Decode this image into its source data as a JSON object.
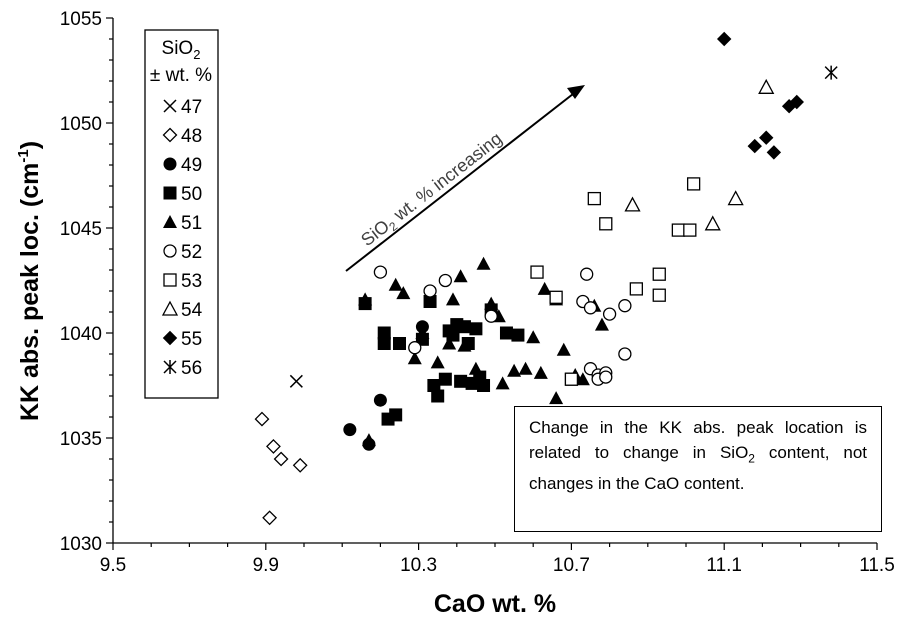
{
  "chart_data": {
    "type": "scatter",
    "xlabel": "CaO wt. %",
    "ylabel_main": "KK abs. peak loc. (cm",
    "ylabel_sup": "-1",
    "ylabel_end": ")",
    "xlim": [
      9.5,
      11.5
    ],
    "ylim": [
      1030,
      1055
    ],
    "xticks": [
      "9.5",
      "9.9",
      "10.3",
      "10.7",
      "11.1",
      "11.5"
    ],
    "yticks": [
      "1030",
      "1035",
      "1040",
      "1045",
      "1050",
      "1055"
    ],
    "legend": {
      "title_line1": "SiO",
      "title_sub": "2",
      "title_line2": "± wt. %",
      "placement": "top-left"
    },
    "arrow_label": {
      "prefix": "SiO",
      "sub": "2",
      "suffix": " wt. % increasing"
    },
    "series": [
      {
        "name": "47",
        "marker": "x",
        "points": [
          [
            9.98,
            1037.7
          ]
        ]
      },
      {
        "name": "48",
        "marker": "diamond-open",
        "points": [
          [
            9.89,
            1035.9
          ],
          [
            9.91,
            1031.2
          ],
          [
            9.92,
            1034.6
          ],
          [
            9.94,
            1034.0
          ],
          [
            9.99,
            1033.7
          ]
        ]
      },
      {
        "name": "49",
        "marker": "circle-filled",
        "points": [
          [
            10.12,
            1035.4
          ],
          [
            10.17,
            1034.7
          ],
          [
            10.2,
            1036.8
          ],
          [
            10.31,
            1040.3
          ]
        ]
      },
      {
        "name": "50",
        "marker": "square-filled",
        "points": [
          [
            10.16,
            1041.4
          ],
          [
            10.21,
            1040.0
          ],
          [
            10.21,
            1039.5
          ],
          [
            10.22,
            1035.9
          ],
          [
            10.24,
            1036.1
          ],
          [
            10.25,
            1039.5
          ],
          [
            10.31,
            1039.7
          ],
          [
            10.33,
            1041.5
          ],
          [
            10.34,
            1037.5
          ],
          [
            10.35,
            1037.0
          ],
          [
            10.37,
            1037.8
          ],
          [
            10.38,
            1040.1
          ],
          [
            10.39,
            1039.9
          ],
          [
            10.4,
            1040.4
          ],
          [
            10.41,
            1037.7
          ],
          [
            10.42,
            1040.3
          ],
          [
            10.43,
            1039.5
          ],
          [
            10.44,
            1037.6
          ],
          [
            10.45,
            1040.2
          ],
          [
            10.46,
            1037.9
          ],
          [
            10.47,
            1037.5
          ],
          [
            10.49,
            1041.1
          ],
          [
            10.53,
            1040.0
          ],
          [
            10.56,
            1039.9
          ],
          [
            10.7,
            1037.8
          ]
        ]
      },
      {
        "name": "51",
        "marker": "triangle-filled",
        "points": [
          [
            10.16,
            1041.6
          ],
          [
            10.17,
            1034.9
          ],
          [
            10.24,
            1042.3
          ],
          [
            10.26,
            1041.9
          ],
          [
            10.29,
            1038.8
          ],
          [
            10.31,
            1040.0
          ],
          [
            10.35,
            1038.6
          ],
          [
            10.38,
            1039.5
          ],
          [
            10.39,
            1041.6
          ],
          [
            10.41,
            1042.7
          ],
          [
            10.42,
            1039.4
          ],
          [
            10.45,
            1038.3
          ],
          [
            10.47,
            1043.3
          ],
          [
            10.49,
            1041.4
          ],
          [
            10.51,
            1040.8
          ],
          [
            10.52,
            1037.6
          ],
          [
            10.55,
            1038.2
          ],
          [
            10.58,
            1038.3
          ],
          [
            10.6,
            1039.8
          ],
          [
            10.62,
            1038.1
          ],
          [
            10.63,
            1042.1
          ],
          [
            10.66,
            1041.6
          ],
          [
            10.66,
            1036.9
          ],
          [
            10.68,
            1039.2
          ],
          [
            10.71,
            1038.0
          ],
          [
            10.73,
            1037.8
          ],
          [
            10.78,
            1040.4
          ],
          [
            10.76,
            1041.3
          ]
        ]
      },
      {
        "name": "52",
        "marker": "circle-open",
        "points": [
          [
            10.2,
            1042.9
          ],
          [
            10.29,
            1039.3
          ],
          [
            10.33,
            1042.0
          ],
          [
            10.37,
            1042.5
          ],
          [
            10.49,
            1040.8
          ],
          [
            10.73,
            1041.5
          ],
          [
            10.74,
            1042.8
          ],
          [
            10.75,
            1041.2
          ],
          [
            10.75,
            1038.3
          ],
          [
            10.77,
            1038.0
          ],
          [
            10.77,
            1037.8
          ],
          [
            10.79,
            1038.1
          ],
          [
            10.79,
            1037.9
          ],
          [
            10.8,
            1040.9
          ],
          [
            10.84,
            1041.3
          ],
          [
            10.84,
            1039.0
          ]
        ]
      },
      {
        "name": "53",
        "marker": "square-open",
        "points": [
          [
            10.61,
            1042.9
          ],
          [
            10.66,
            1041.7
          ],
          [
            10.7,
            1037.8
          ],
          [
            10.76,
            1046.4
          ],
          [
            10.79,
            1045.2
          ],
          [
            10.87,
            1042.1
          ],
          [
            10.93,
            1042.8
          ],
          [
            10.93,
            1041.8
          ],
          [
            10.98,
            1044.9
          ],
          [
            11.01,
            1044.9
          ],
          [
            11.02,
            1047.1
          ]
        ]
      },
      {
        "name": "54",
        "marker": "triangle-open",
        "points": [
          [
            10.86,
            1046.1
          ],
          [
            11.07,
            1045.2
          ],
          [
            11.13,
            1046.4
          ],
          [
            11.21,
            1051.7
          ]
        ]
      },
      {
        "name": "55",
        "marker": "diamond-filled",
        "points": [
          [
            11.1,
            1054.0
          ],
          [
            11.18,
            1048.9
          ],
          [
            11.21,
            1049.3
          ],
          [
            11.23,
            1048.6
          ],
          [
            11.27,
            1050.8
          ],
          [
            11.29,
            1051.0
          ]
        ]
      },
      {
        "name": "56",
        "marker": "asterisk",
        "points": [
          [
            11.38,
            1052.4
          ]
        ]
      }
    ]
  },
  "note": {
    "line1": "Change in the KK abs. peak location is related to change in ",
    "sio_prefix": "SiO",
    "sio_sub": "2",
    "line2": " content, not changes in the CaO content."
  }
}
